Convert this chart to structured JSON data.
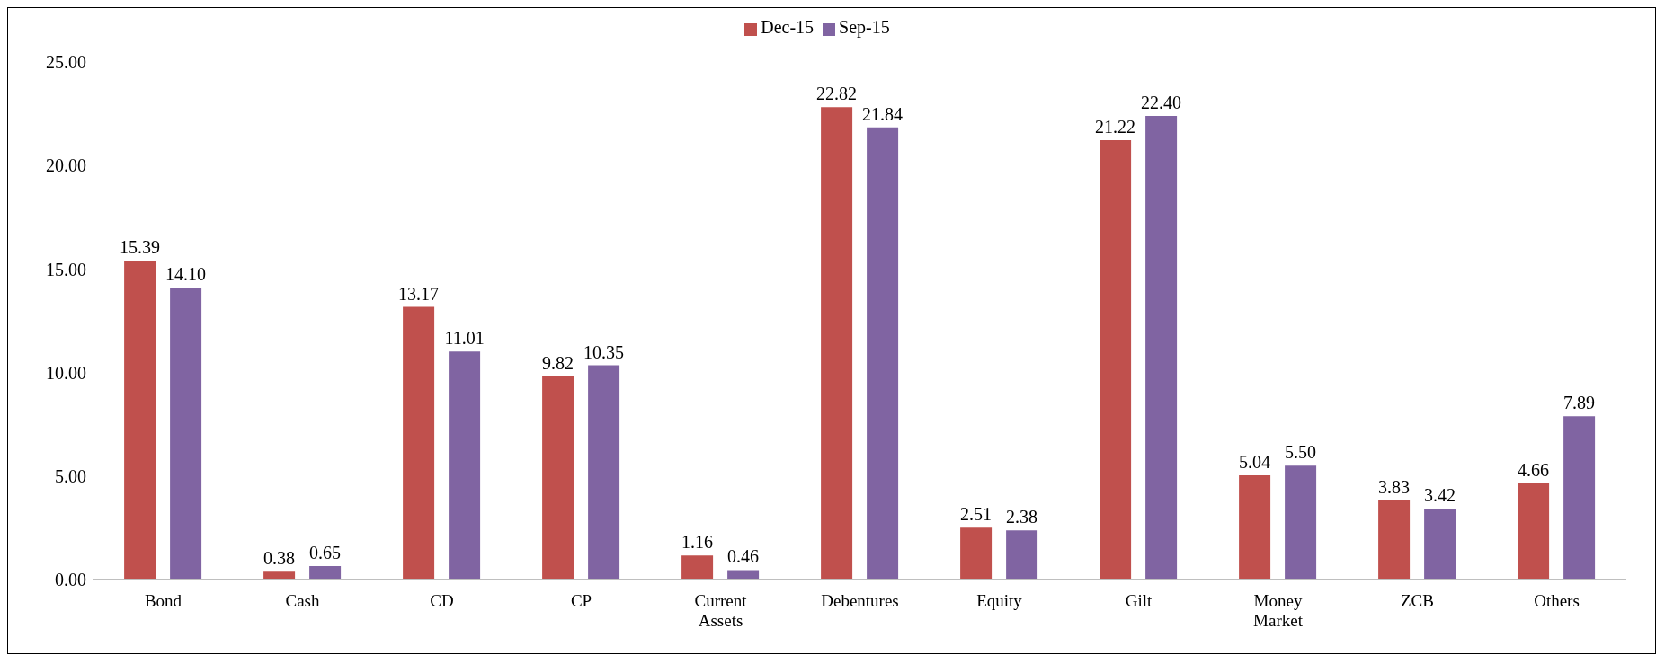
{
  "chart_data": {
    "type": "bar",
    "categories": [
      "Bond",
      "Cash",
      "CD",
      "CP",
      "Current Assets",
      "Debentures",
      "Equity",
      "Gilt",
      "Money Market",
      "ZCB",
      "Others"
    ],
    "series": [
      {
        "name": "Dec-15",
        "color": "#c0504d",
        "values": [
          15.39,
          0.38,
          13.17,
          9.82,
          1.16,
          22.82,
          2.51,
          21.22,
          5.04,
          3.83,
          4.66
        ],
        "value_labels": [
          "15.39",
          "0.38",
          "13.17",
          "9.82",
          "1.16",
          "22.82",
          "2.51",
          "21.22",
          "5.04",
          "3.83",
          "4.66"
        ]
      },
      {
        "name": "Sep-15",
        "color": "#8064a2",
        "values": [
          14.1,
          0.65,
          11.01,
          10.35,
          0.46,
          21.84,
          2.38,
          22.4,
          5.5,
          3.42,
          7.89
        ],
        "value_labels": [
          "14.10",
          "0.65",
          "11.01",
          "10.35",
          "0.46",
          "21.84",
          "2.38",
          "22.40",
          "5.50",
          "3.42",
          "7.89"
        ]
      }
    ],
    "ylim": [
      0,
      25
    ],
    "yticks": [
      {
        "value": 0,
        "label": "0.00"
      },
      {
        "value": 5,
        "label": "5.00"
      },
      {
        "value": 10,
        "label": "10.00"
      },
      {
        "value": 15,
        "label": "15.00"
      },
      {
        "value": 20,
        "label": "20.00"
      },
      {
        "value": 25,
        "label": "25.00"
      }
    ],
    "legend": "top"
  }
}
